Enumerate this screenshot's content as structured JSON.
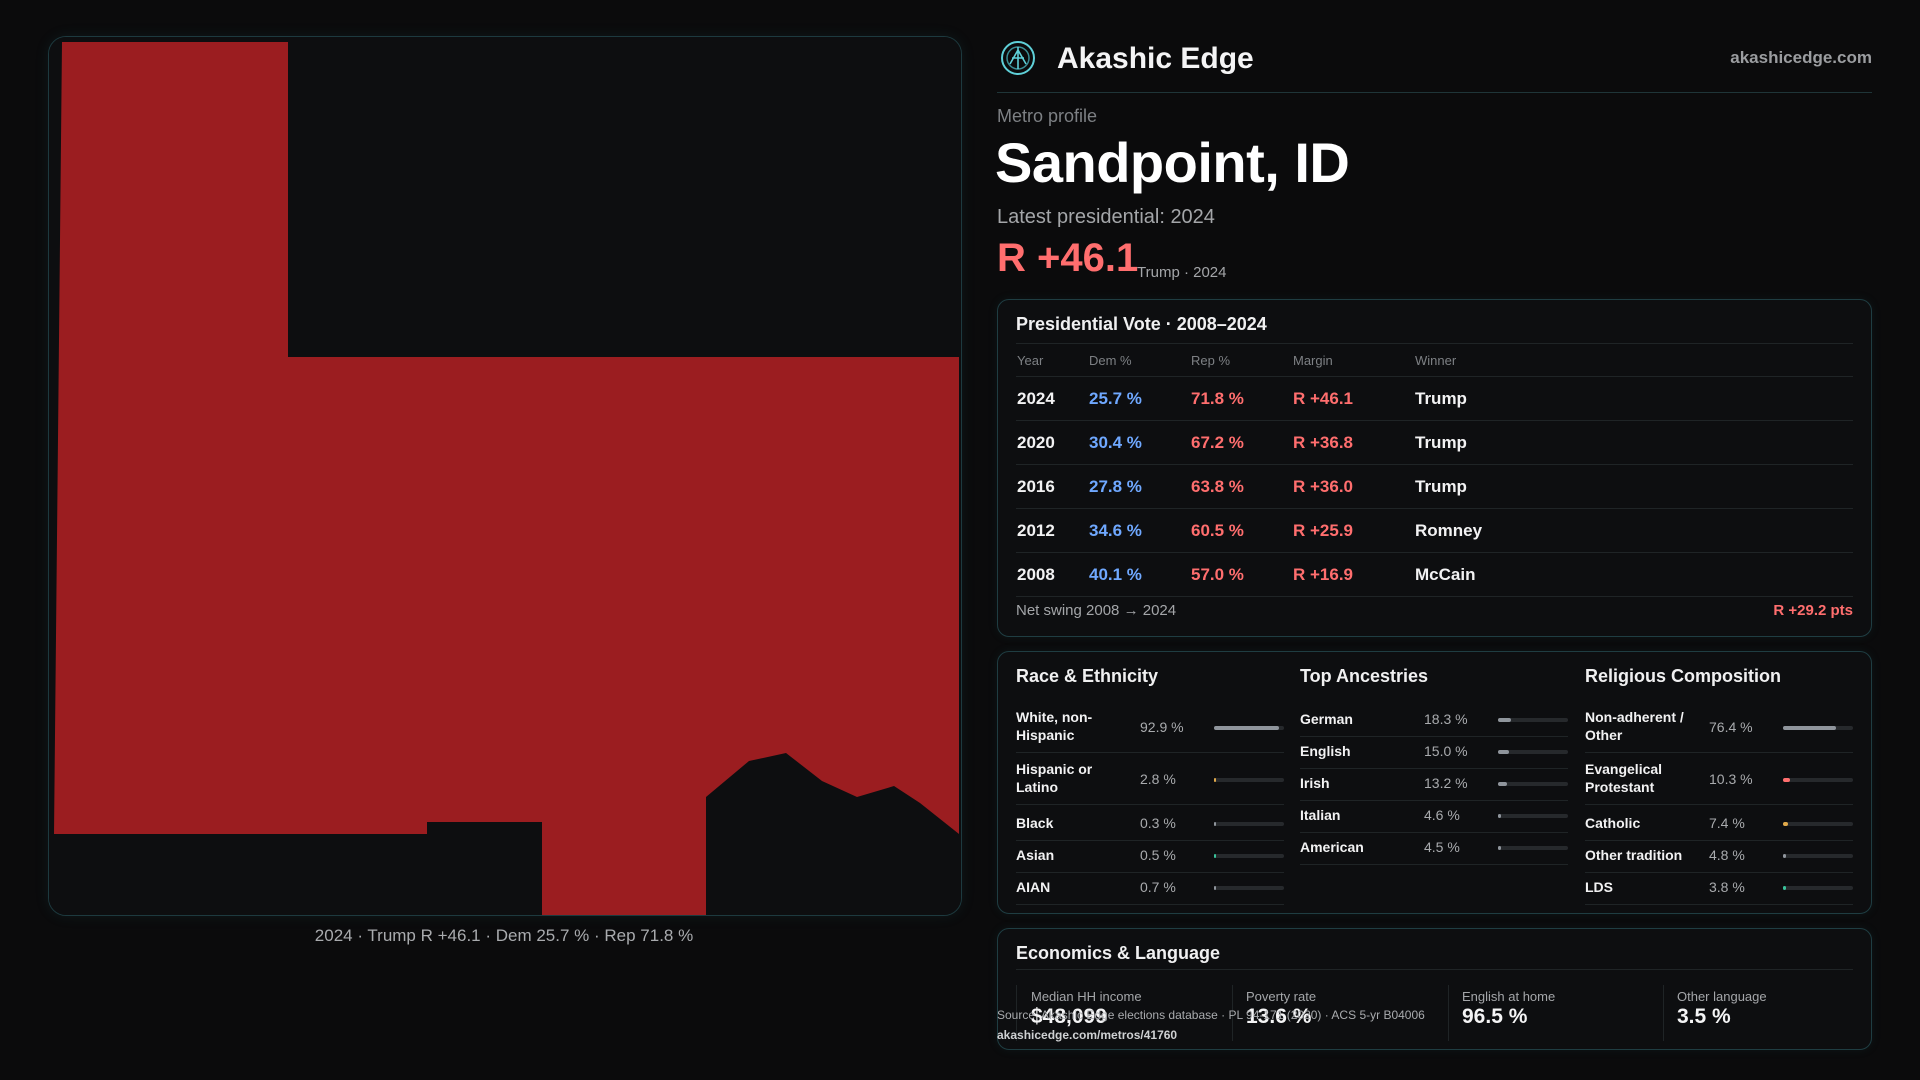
{
  "colors": {
    "rep": "#ff6e6e",
    "dem": "#6fa8ff",
    "map_fill": "#9b1d20",
    "accent": "#5fd0d8"
  },
  "map": {
    "caption": "2024 · Trump R +46.1 · Dem 25.7 % · Rep 71.8 %",
    "winner_party": "R"
  },
  "brand": {
    "name": "Akashic Edge",
    "url": "akashicedge.com",
    "logo_icon": "akashic-edge-logo"
  },
  "profile": {
    "kicker": "Metro profile",
    "title": "Sandpoint, ID",
    "latest": "Latest presidential: 2024",
    "margin": "R +46.1",
    "margin_detail": "Trump · 2024"
  },
  "presidential": {
    "title": "Presidential Vote · 2008–2024",
    "headers": {
      "year": "Year",
      "dem": "Dem %",
      "rep": "Rep %",
      "margin": "Margin",
      "winner": "Winner"
    },
    "rows": [
      {
        "year": "2024",
        "dem": "25.7 %",
        "rep": "71.8 %",
        "margin": "R +46.1",
        "winner": "Trump"
      },
      {
        "year": "2020",
        "dem": "30.4 %",
        "rep": "67.2 %",
        "margin": "R +36.8",
        "winner": "Trump"
      },
      {
        "year": "2016",
        "dem": "27.8 %",
        "rep": "63.8 %",
        "margin": "R +36.0",
        "winner": "Trump"
      },
      {
        "year": "2012",
        "dem": "34.6 %",
        "rep": "60.5 %",
        "margin": "R +25.9",
        "winner": "Romney"
      },
      {
        "year": "2008",
        "dem": "40.1 %",
        "rep": "57.0 %",
        "margin": "R +16.9",
        "winner": "McCain"
      }
    ],
    "swing_label": "Net swing 2008 → 2024",
    "swing_value": "R +29.2 pts"
  },
  "race": {
    "title": "Race & Ethnicity",
    "rows": [
      {
        "label": "White, non-Hispanic",
        "value": "92.9 %",
        "share": 0.929,
        "color": "#8f959c"
      },
      {
        "label": "Hispanic or Latino",
        "value": "2.8 %",
        "share": 0.028,
        "color": "#e0a94a"
      },
      {
        "label": "Black",
        "value": "0.3 %",
        "share": 0.003,
        "color": "#8f959c"
      },
      {
        "label": "Asian",
        "value": "0.5 %",
        "share": 0.005,
        "color": "#39c29a"
      },
      {
        "label": "AIAN",
        "value": "0.7 %",
        "share": 0.007,
        "color": "#8f959c"
      }
    ]
  },
  "ancestries": {
    "title": "Top Ancestries",
    "rows": [
      {
        "label": "German",
        "value": "18.3 %",
        "share": 0.183,
        "color": "#8f959c"
      },
      {
        "label": "English",
        "value": "15.0 %",
        "share": 0.15,
        "color": "#8f959c"
      },
      {
        "label": "Irish",
        "value": "13.2 %",
        "share": 0.132,
        "color": "#8f959c"
      },
      {
        "label": "Italian",
        "value": "4.6 %",
        "share": 0.046,
        "color": "#8f959c"
      },
      {
        "label": "American",
        "value": "4.5 %",
        "share": 0.045,
        "color": "#8f959c"
      }
    ]
  },
  "religion": {
    "title": "Religious Composition",
    "rows": [
      {
        "label": "Non-adherent / Other",
        "value": "76.4 %",
        "share": 0.764,
        "color": "#8f959c"
      },
      {
        "label": "Evangelical Protestant",
        "value": "10.3 %",
        "share": 0.103,
        "color": "#ff6e6e"
      },
      {
        "label": "Catholic",
        "value": "7.4 %",
        "share": 0.074,
        "color": "#e0a94a"
      },
      {
        "label": "Other tradition",
        "value": "4.8 %",
        "share": 0.048,
        "color": "#8f959c"
      },
      {
        "label": "LDS",
        "value": "3.8 %",
        "share": 0.038,
        "color": "#39c29a"
      }
    ]
  },
  "economics": {
    "title": "Economics & Language",
    "stats": [
      {
        "label": "Median HH income",
        "value": "$48,099"
      },
      {
        "label": "Poverty rate",
        "value": "13.6 %"
      },
      {
        "label": "English at home",
        "value": "96.5 %"
      },
      {
        "label": "Other language",
        "value": "3.5 %"
      }
    ]
  },
  "footer": {
    "source": "Source: Akashic Edge elections database · PL 94-171 (2020) · ACS 5-yr B04006",
    "url": "akashicedge.com/metros/41760"
  }
}
